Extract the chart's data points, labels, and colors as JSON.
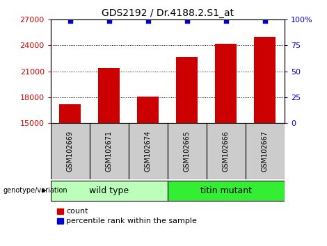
{
  "title": "GDS2192 / Dr.4188.2.S1_at",
  "samples": [
    "GSM102669",
    "GSM102671",
    "GSM102674",
    "GSM102665",
    "GSM102666",
    "GSM102667"
  ],
  "counts": [
    17200,
    21400,
    18100,
    22700,
    24200,
    25000
  ],
  "percentile_ranks": [
    99,
    99,
    99,
    99,
    99,
    99
  ],
  "ylim_left": [
    15000,
    27000
  ],
  "yticks_left": [
    15000,
    18000,
    21000,
    24000,
    27000
  ],
  "yticks_right": [
    0,
    25,
    50,
    75,
    100
  ],
  "ylim_right": [
    0,
    100
  ],
  "bar_color": "#cc0000",
  "dot_color": "#0000cc",
  "groups": [
    {
      "label": "wild type",
      "indices": [
        0,
        1,
        2
      ],
      "color": "#bbffbb"
    },
    {
      "label": "titin mutant",
      "indices": [
        3,
        4,
        5
      ],
      "color": "#33ee33"
    }
  ],
  "genotype_label": "genotype/variation",
  "legend_count_label": "count",
  "legend_pct_label": "percentile rank within the sample",
  "bg_plot": "#ffffff",
  "bg_sample_area": "#cccccc",
  "title_fontsize": 10,
  "tick_fontsize": 8,
  "sample_fontsize": 7,
  "legend_fontsize": 8,
  "group_fontsize": 9
}
